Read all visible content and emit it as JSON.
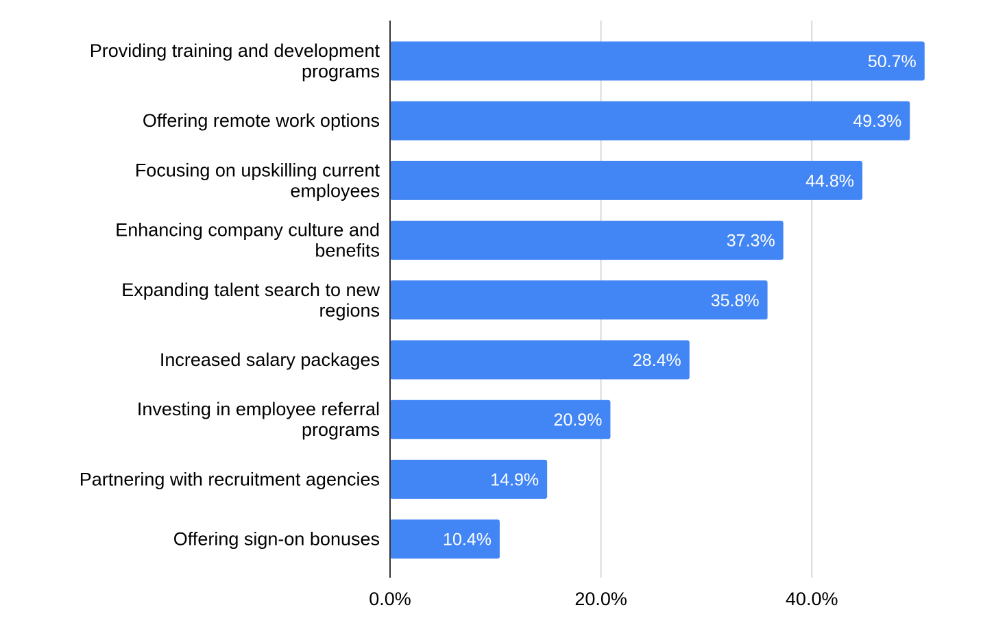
{
  "chart_data": {
    "type": "bar",
    "orientation": "horizontal",
    "title": "",
    "xlabel": "",
    "ylabel": "",
    "categories": [
      [
        "Providing training and development",
        "programs"
      ],
      [
        "Offering remote work options"
      ],
      [
        "Focusing on upskilling current",
        "employees"
      ],
      [
        "Enhancing company culture and",
        "benefits"
      ],
      [
        "Expanding talent search to new",
        "regions"
      ],
      [
        "Increased salary packages"
      ],
      [
        "Investing in employee referral",
        "programs"
      ],
      [
        "Partnering with recruitment agencies"
      ],
      [
        "Offering sign-on bonuses"
      ]
    ],
    "values": [
      50.7,
      49.3,
      44.8,
      37.3,
      35.8,
      28.4,
      20.9,
      14.9,
      10.4
    ],
    "data_labels": [
      "50.7%",
      "49.3%",
      "44.8%",
      "37.3%",
      "35.8%",
      "28.4%",
      "20.9%",
      "14.9%",
      "10.4%"
    ],
    "xlim": [
      0,
      55
    ],
    "ticks": [
      0,
      20,
      40
    ],
    "tick_labels": [
      "0.0%",
      "20.0%",
      "40.0%"
    ],
    "gridlines": true,
    "legend": "none",
    "bar_color": "#4285f4",
    "gridline_color": "#d9d9d9",
    "axis_color": "#333333",
    "label_color": "#000000",
    "data_label_color": "#ffffff"
  }
}
